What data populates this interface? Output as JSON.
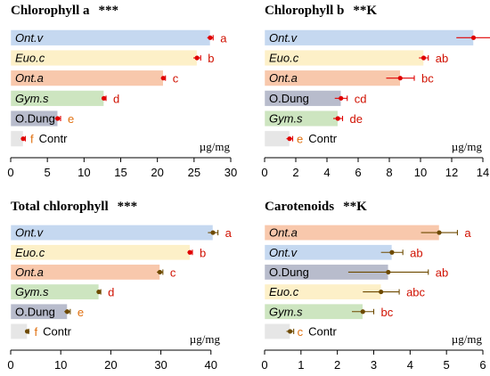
{
  "colors": {
    "Ont.v": "#c5d8f0",
    "Euo.c": "#fdf0c8",
    "Ont.a": "#f8c8ac",
    "Gym.s": "#cde5c0",
    "O.Dung": "#b8bccc",
    "Contr": "#e6e6e6",
    "point_red": "#e00000",
    "point_dark": "#6e4a00",
    "sig_red": "#d01000",
    "sig_orange": "#e07010"
  },
  "chart_data": [
    {
      "type": "bar",
      "title": "Chlorophyll a",
      "title_sig": "***",
      "unit": "µg/mg",
      "xlim": [
        0,
        30
      ],
      "ticks": [
        0,
        5,
        10,
        15,
        20,
        25,
        30
      ],
      "categories": [
        "Ont.v",
        "Euo.c",
        "Ont.a",
        "Gym.s",
        "O.Dung",
        "Contr"
      ],
      "italic": [
        true,
        true,
        true,
        true,
        false,
        false
      ],
      "values": [
        27.2,
        25.4,
        20.8,
        12.7,
        6.4,
        1.7
      ],
      "errors": [
        0.4,
        0.5,
        0.3,
        0.3,
        0.4,
        0.3
      ],
      "letters": [
        "a",
        "b",
        "c",
        "d",
        "e",
        "f"
      ],
      "point_colors": [
        "red",
        "red",
        "red",
        "red",
        "red",
        "red"
      ],
      "letter_colors": [
        "red",
        "red",
        "red",
        "red",
        "orange",
        "orange"
      ]
    },
    {
      "type": "bar",
      "title": "Chlorophyll b",
      "title_sig": "**K",
      "unit": "µg/mg",
      "xlim": [
        0,
        14
      ],
      "ticks": [
        0,
        2,
        4,
        6,
        8,
        10,
        12,
        14
      ],
      "categories": [
        "Ont.v",
        "Euo.c",
        "Ont.a",
        "O.Dung",
        "Gym.s",
        "Contr"
      ],
      "italic": [
        true,
        true,
        true,
        false,
        true,
        false
      ],
      "values": [
        13.4,
        10.2,
        8.7,
        4.9,
        4.7,
        1.6
      ],
      "errors": [
        1.1,
        0.3,
        0.9,
        0.4,
        0.3,
        0.2
      ],
      "letters": [
        "a",
        "ab",
        "bc",
        "cd",
        "de",
        "e"
      ],
      "point_colors": [
        "red",
        "red",
        "red",
        "red",
        "red",
        "red"
      ],
      "letter_colors": [
        "red",
        "red",
        "red",
        "red",
        "red",
        "orange"
      ]
    },
    {
      "type": "bar",
      "title": "Total chlorophyll",
      "title_sig": "***",
      "unit": "µg/mg",
      "xlim": [
        0,
        42
      ],
      "ticks": [
        0,
        10,
        20,
        30,
        40
      ],
      "categories": [
        "Ont.v",
        "Euo.c",
        "Ont.a",
        "Gym.s",
        "O.Dung",
        "Contr"
      ],
      "italic": [
        true,
        true,
        true,
        true,
        false,
        false
      ],
      "values": [
        40.4,
        35.8,
        29.8,
        17.6,
        11.3,
        3.3
      ],
      "errors": [
        1.0,
        0.5,
        0.6,
        0.4,
        0.6,
        0.3
      ],
      "letters": [
        "a",
        "b",
        "c",
        "d",
        "e",
        "f"
      ],
      "point_colors": [
        "dark",
        "red",
        "dark",
        "dark",
        "dark",
        "dark"
      ],
      "letter_colors": [
        "red",
        "red",
        "red",
        "red",
        "orange",
        "orange"
      ]
    },
    {
      "type": "bar",
      "title": "Carotenoids",
      "title_sig": "**K",
      "unit": "µg/mg",
      "xlim": [
        0,
        6
      ],
      "ticks": [
        0,
        1,
        2,
        3,
        4,
        5,
        6
      ],
      "categories": [
        "Ont.a",
        "Ont.v",
        "O.Dung",
        "Euo.c",
        "Gym.s",
        "Contr"
      ],
      "italic": [
        true,
        true,
        false,
        true,
        true,
        false
      ],
      "values": [
        4.8,
        3.5,
        3.4,
        3.2,
        2.7,
        0.7
      ],
      "errors": [
        0.5,
        0.3,
        1.1,
        0.5,
        0.3,
        0.1
      ],
      "letters": [
        "a",
        "ab",
        "ab",
        "abc",
        "bc",
        "c"
      ],
      "point_colors": [
        "dark",
        "dark",
        "dark",
        "dark",
        "dark",
        "dark"
      ],
      "letter_colors": [
        "red",
        "red",
        "red",
        "red",
        "red",
        "orange"
      ]
    }
  ]
}
